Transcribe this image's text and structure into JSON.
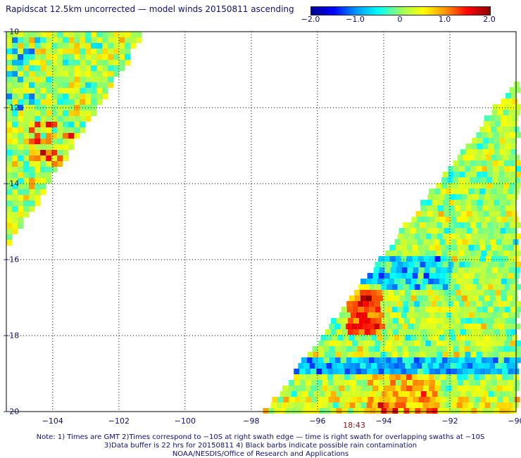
{
  "title": "Rapidscat 12.5km uncorrected — model winds 20150811 ascending",
  "colorbar": {
    "min": -2.0,
    "max": 2.0,
    "tick_labels": [
      "−2.0",
      "−1.0",
      "0",
      "1.0",
      "2.0"
    ],
    "tick_values": [
      -2.0,
      -1.0,
      0,
      1.0,
      2.0
    ],
    "colors": [
      "#00008c",
      "#0000ff",
      "#0096ff",
      "#00ffff",
      "#96ff64",
      "#ffff00",
      "#ff9600",
      "#ff0000",
      "#8c0000"
    ]
  },
  "map": {
    "lon_range": [
      -105.4,
      -90
    ],
    "lat_range": [
      -20,
      -10
    ],
    "lon_labels": [
      "−104",
      "−102",
      "−100",
      "−98",
      "−96",
      "−94",
      "−92",
      "−90"
    ],
    "lon_values": [
      -104,
      -102,
      -100,
      -98,
      -96,
      -94,
      -92,
      -90
    ],
    "lat_labels": [
      "−10",
      "−12",
      "−14",
      "−16",
      "−18",
      "−20"
    ],
    "lat_values": [
      -10,
      -12,
      -14,
      -16,
      -18,
      -20
    ],
    "grid": "dotted",
    "swath_time": "18:43"
  },
  "notes": [
    "Note: 1) Times are GMT 2)Times correspond to −10S at right swath edge — time is right swath for overlapping swaths at −10S",
    "3)Data buffer is 22 hrs for 20150811 4) Black barbs indicate possible rain contamination",
    "NOAA/NESDIS/Office of Research and Applications"
  ]
}
